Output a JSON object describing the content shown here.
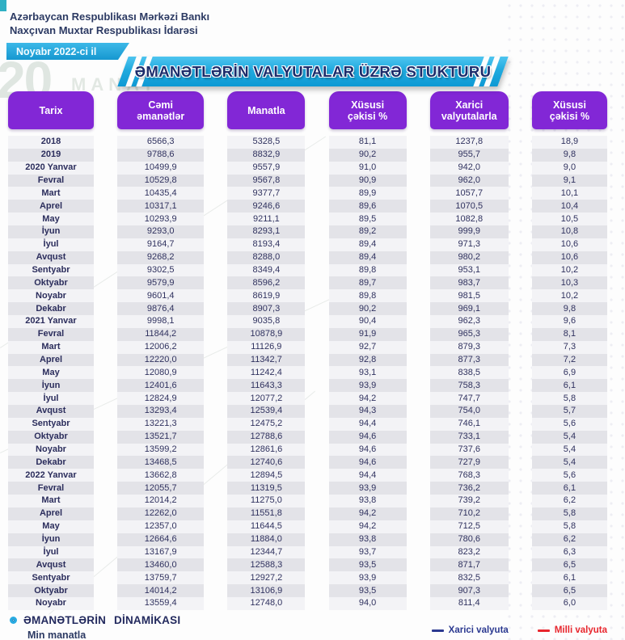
{
  "header": {
    "org_line1": "Azərbaycan Respublikası Mərkəzi Bankı",
    "org_line2": "Naxçıvan Muxtar Respublikası İdarəsi",
    "period_badge": "Noyabr 2022-ci il",
    "title": "ƏMANƏTLƏRİN VALYUTALAR ÜZRƏ STUKTURU"
  },
  "colors": {
    "header_purple": "#8227d6",
    "banner_cyan": "#1ea7dd",
    "text_navy": "#2b2d5c",
    "row_dark": "#e3e3e8",
    "row_light": "#f3f3f6",
    "legend_blue": "#2b3990",
    "legend_red": "#e8262d"
  },
  "background": {
    "watermark_number": "20",
    "watermark_word": "MANAT"
  },
  "table": {
    "headers": [
      "Tarix",
      "Cəmi\nəmanətlər",
      "Manatla",
      "Xüsusi\nçəkisi %",
      "Xarici\nvalyutalarla",
      "Xüsusi\nçəkisi %"
    ],
    "rows": [
      [
        "2018",
        "6566,3",
        "5328,5",
        "81,1",
        "1237,8",
        "18,9"
      ],
      [
        "2019",
        "9788,6",
        "8832,9",
        "90,2",
        "955,7",
        "9,8"
      ],
      [
        "2020 Yanvar",
        "10499,9",
        "9557,9",
        "91,0",
        "942,0",
        "9,0"
      ],
      [
        "Fevral",
        "10529,8",
        "9567,8",
        "90,9",
        "962,0",
        "9,1"
      ],
      [
        "Mart",
        "10435,4",
        "9377,7",
        "89,9",
        "1057,7",
        "10,1"
      ],
      [
        "Aprel",
        "10317,1",
        "9246,6",
        "89,6",
        "1070,5",
        "10,4"
      ],
      [
        "May",
        "10293,9",
        "9211,1",
        "89,5",
        "1082,8",
        "10,5"
      ],
      [
        "İyun",
        "9293,0",
        "8293,1",
        "89,2",
        "999,9",
        "10,8"
      ],
      [
        "İyul",
        "9164,7",
        "8193,4",
        "89,4",
        "971,3",
        "10,6"
      ],
      [
        "Avqust",
        "9268,2",
        "8288,0",
        "89,4",
        "980,2",
        "10,6"
      ],
      [
        "Sentyabr",
        "9302,5",
        "8349,4",
        "89,8",
        "953,1",
        "10,2"
      ],
      [
        "Oktyabr",
        "9579,9",
        "8596,2",
        "89,7",
        "983,7",
        "10,3"
      ],
      [
        "Noyabr",
        "9601,4",
        "8619,9",
        "89,8",
        "981,5",
        "10,2"
      ],
      [
        "Dekabr",
        "9876,4",
        "8907,3",
        "90,2",
        "969,1",
        "9,8"
      ],
      [
        "2021 Yanvar",
        "9998,1",
        "9035,8",
        "90,4",
        "962,3",
        "9,6"
      ],
      [
        "Fevral",
        "11844,2",
        "10878,9",
        "91,9",
        "965,3",
        "8,1"
      ],
      [
        "Mart",
        "12006,2",
        "11126,9",
        "92,7",
        "879,3",
        "7,3"
      ],
      [
        "Aprel",
        "12220,0",
        "11342,7",
        "92,8",
        "877,3",
        "7,2"
      ],
      [
        "May",
        "12080,9",
        "11242,4",
        "93,1",
        "838,5",
        "6,9"
      ],
      [
        "İyun",
        "12401,6",
        "11643,3",
        "93,9",
        "758,3",
        "6,1"
      ],
      [
        "İyul",
        "12824,9",
        "12077,2",
        "94,2",
        "747,7",
        "5,8"
      ],
      [
        "Avqust",
        "13293,4",
        "12539,4",
        "94,3",
        "754,0",
        "5,7"
      ],
      [
        "Sentyabr",
        "13221,3",
        "12475,2",
        "94,4",
        "746,1",
        "5,6"
      ],
      [
        "Oktyabr",
        "13521,7",
        "12788,6",
        "94,6",
        "733,1",
        "5,4"
      ],
      [
        "Noyabr",
        "13599,2",
        "12861,6",
        "94,6",
        "737,6",
        "5,4"
      ],
      [
        "Dekabr",
        "13468,5",
        "12740,6",
        "94,6",
        "727,9",
        "5,4"
      ],
      [
        "2022 Yanvar",
        "13662,8",
        "12894,5",
        "94,4",
        "768,3",
        "5,6"
      ],
      [
        "Fevral",
        "12055,7",
        "11319,5",
        "93,9",
        "736,2",
        "6,1"
      ],
      [
        "Mart",
        "12014,2",
        "11275,0",
        "93,8",
        "739,2",
        "6,2"
      ],
      [
        "Aprel",
        "12262,0",
        "11551,8",
        "94,2",
        "710,2",
        "5,8"
      ],
      [
        "May",
        "12357,0",
        "11644,5",
        "94,2",
        "712,5",
        "5,8"
      ],
      [
        "İyun",
        "12664,6",
        "11884,0",
        "93,8",
        "780,6",
        "6,2"
      ],
      [
        "İyul",
        "13167,9",
        "12344,7",
        "93,7",
        "823,2",
        "6,3"
      ],
      [
        "Avqust",
        "13460,0",
        "12588,3",
        "93,5",
        "871,7",
        "6,5"
      ],
      [
        "Sentyabr",
        "13759,7",
        "12927,2",
        "93,9",
        "832,5",
        "6,1"
      ],
      [
        "Oktyabr",
        "14014,2",
        "13106,9",
        "93,5",
        "907,3",
        "6,5"
      ],
      [
        "Noyabr",
        "13559,4",
        "12748,0",
        "94,0",
        "811,4",
        "6,0"
      ]
    ]
  },
  "footer": {
    "section_title": "ƏMANƏTLƏRİN DİNAMİKASI",
    "subtitle": "Min manatla",
    "legend": [
      {
        "label": "Xarici valyuta",
        "color": "#2b3990"
      },
      {
        "label": "Milli valyuta",
        "color": "#e8262d"
      }
    ]
  }
}
